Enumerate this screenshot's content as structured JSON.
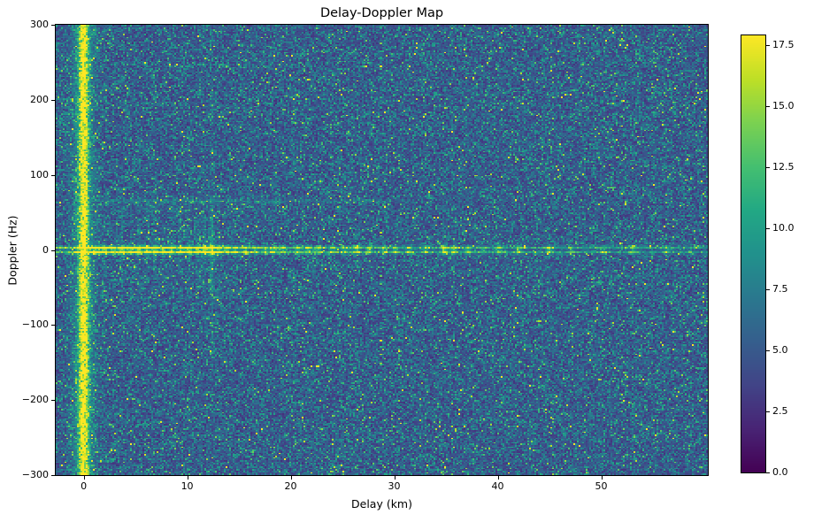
{
  "chart_data": {
    "type": "heatmap",
    "title": "Delay-Doppler Map",
    "xlabel": "Delay (km)",
    "ylabel": "Doppler (Hz)",
    "xlim": [
      -2.7,
      60.3
    ],
    "ylim": [
      -300,
      300
    ],
    "grid_on": false,
    "xticks": [
      {
        "v": 0,
        "label": "0"
      },
      {
        "v": 10,
        "label": "10"
      },
      {
        "v": 20,
        "label": "20"
      },
      {
        "v": 30,
        "label": "30"
      },
      {
        "v": 40,
        "label": "40"
      },
      {
        "v": 50,
        "label": "50"
      }
    ],
    "yticks": [
      {
        "v": 300,
        "label": "300"
      },
      {
        "v": 200,
        "label": "200"
      },
      {
        "v": 100,
        "label": "100"
      },
      {
        "v": 0,
        "label": "0"
      },
      {
        "v": -100,
        "label": "−100"
      },
      {
        "v": -200,
        "label": "−200"
      },
      {
        "v": -300,
        "label": "−300"
      }
    ],
    "colorbar": {
      "vmin": 0,
      "vmax": 17.9,
      "ticks": [
        {
          "v": 17.5,
          "label": "17.5"
        },
        {
          "v": 15.0,
          "label": "15.0"
        },
        {
          "v": 12.5,
          "label": "12.5"
        },
        {
          "v": 10.0,
          "label": "10.0"
        },
        {
          "v": 7.5,
          "label": "7.5"
        },
        {
          "v": 5.0,
          "label": "5.0"
        },
        {
          "v": 2.5,
          "label": "2.5"
        },
        {
          "v": 0.0,
          "label": "0.0"
        }
      ]
    },
    "colormap": {
      "name": "viridis",
      "stops": [
        {
          "t": 0.0,
          "hex": "#440154"
        },
        {
          "t": 0.1,
          "hex": "#482475"
        },
        {
          "t": 0.2,
          "hex": "#414487"
        },
        {
          "t": 0.3,
          "hex": "#355f8d"
        },
        {
          "t": 0.4,
          "hex": "#2a788e"
        },
        {
          "t": 0.5,
          "hex": "#21918c"
        },
        {
          "t": 0.6,
          "hex": "#22a884"
        },
        {
          "t": 0.7,
          "hex": "#44bf70"
        },
        {
          "t": 0.8,
          "hex": "#7ad151"
        },
        {
          "t": 0.9,
          "hex": "#bddf26"
        },
        {
          "t": 1.0,
          "hex": "#fde725"
        }
      ]
    },
    "grid": {
      "cols": 368,
      "rows": 300
    },
    "noise": {
      "background_mean": 5.9
    },
    "features": {
      "zero_delay_stripe": {
        "delay_km": 0,
        "core_amp": 14,
        "core_sigma_km": 0.45,
        "glow_amp": 5,
        "glow_sigma_km": 1.1
      },
      "zero_doppler_ridge": {
        "amp_base": 5.8,
        "amp_near": 9.5,
        "decay_km": 16,
        "sigma_hz": 2.0,
        "null_at_zero_hz": true
      },
      "doppler_sidelobe_band": {
        "doppler_hz": 65,
        "delay_range_km": [
          0.8,
          31.5
        ],
        "amp": 2.1,
        "hotspot": {
          "delay_km": 18.5,
          "extra_amp": 4.6
        }
      },
      "sidelobe_grid": {
        "delay_range_km": [
          2.3,
          16.0
        ],
        "doppler_spacing_hz": 13,
        "doppler_extent_hz": 68,
        "amp": 1.25
      },
      "targets_delay_amp": [
        [
          1.2,
          10.5
        ],
        [
          2.0,
          12.0
        ],
        [
          2.9,
          10.0
        ],
        [
          3.7,
          12.5
        ],
        [
          4.5,
          11.0
        ],
        [
          5.3,
          13.0
        ],
        [
          6.1,
          11.5
        ],
        [
          6.9,
          12.5
        ],
        [
          7.7,
          11.0
        ],
        [
          8.5,
          12.0
        ],
        [
          9.4,
          11.5
        ],
        [
          10.2,
          13.5
        ],
        [
          11.0,
          12.5
        ],
        [
          11.7,
          14.5
        ],
        [
          12.4,
          17.5
        ],
        [
          13.1,
          13.0
        ],
        [
          13.9,
          11.0
        ],
        [
          14.7,
          10.0
        ],
        [
          15.6,
          9.5
        ],
        [
          16.6,
          9.0
        ],
        [
          17.5,
          8.5
        ],
        [
          18.4,
          10.0
        ],
        [
          19.3,
          9.0
        ],
        [
          20.7,
          9.5
        ],
        [
          21.7,
          11.0
        ],
        [
          22.7,
          10.0
        ],
        [
          24.1,
          9.5
        ],
        [
          25.2,
          9.0
        ],
        [
          26.4,
          10.0
        ],
        [
          27.6,
          10.5
        ],
        [
          29.0,
          9.0
        ],
        [
          30.1,
          9.5
        ],
        [
          31.4,
          8.5
        ],
        [
          33.0,
          8.5
        ],
        [
          34.8,
          13.5
        ],
        [
          35.7,
          12.5
        ],
        [
          37.1,
          9.0
        ],
        [
          38.6,
          8.5
        ],
        [
          40.1,
          9.0
        ],
        [
          42.0,
          8.5
        ],
        [
          45.0,
          11.5
        ],
        [
          47.1,
          8.0
        ],
        [
          50.2,
          7.8
        ],
        [
          53.1,
          7.6
        ],
        [
          56.3,
          7.5
        ]
      ]
    }
  }
}
